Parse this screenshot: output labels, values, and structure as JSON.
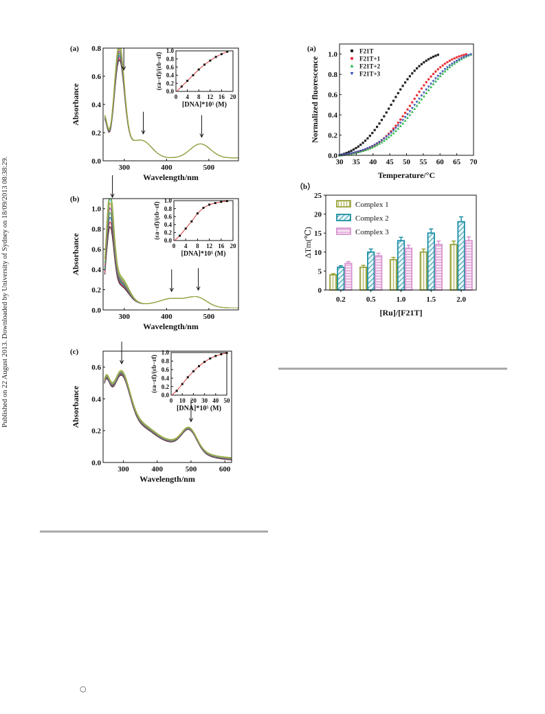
{
  "side_note": "Published on 22 August 2013. Downloaded by University of Sydney on 18/09/2013 08:38:29.",
  "footer_mark": "○",
  "colors": {
    "black": "#222222",
    "red": "#e8333a",
    "green": "#2db84b",
    "blue": "#3a55b0",
    "olive": "#9aa43c",
    "teal": "#1d8fa4",
    "pink": "#d994d0",
    "purple": "#8a3fa0",
    "orange": "#e08a28",
    "fit": "#d93b3b"
  },
  "fig_left": {
    "panels": [
      {
        "id": "a",
        "label": "(a)",
        "xlabel": "Wavelength/nm",
        "ylabel": "Absorbance",
        "xlim": [
          250,
          570
        ],
        "ylim": [
          0,
          0.8
        ],
        "xticks": [
          300,
          400,
          500
        ],
        "yticks": [
          0.0,
          0.2,
          0.4,
          0.6,
          0.8
        ],
        "tick_labels_y": [
          "0.0",
          "0.2",
          "0.4",
          "0.6",
          "0.8"
        ],
        "tick_labels_x": [
          "300",
          "400",
          "500"
        ],
        "peak_x": 288,
        "peak_min": 0.66,
        "peak_max": 0.78,
        "arrows_x": [
          299,
          345,
          483
        ],
        "inset": {
          "xlabel": "[DNA]*10⁵ (M)",
          "ylabel": "(εa−εf)/(εb−εf)",
          "xlim": [
            0,
            20
          ],
          "ylim": [
            0,
            1.0
          ],
          "xticks": [
            0,
            4,
            8,
            12,
            16,
            20
          ],
          "yticks": [
            0.0,
            0.2,
            0.4,
            0.6,
            0.8,
            1.0
          ],
          "tick_labels_x": [
            "0",
            "4",
            "8",
            "12",
            "16",
            "20"
          ],
          "tick_labels_y": [
            "0.0",
            "0.2",
            "0.4",
            "0.6",
            "0.8",
            "1.0"
          ],
          "points": [
            [
              2,
              0.12
            ],
            [
              4,
              0.26
            ],
            [
              6,
              0.4
            ],
            [
              8,
              0.54
            ],
            [
              10,
              0.66
            ],
            [
              12,
              0.76
            ],
            [
              14,
              0.85
            ],
            [
              16,
              0.92
            ],
            [
              18,
              0.98
            ]
          ]
        }
      },
      {
        "id": "b",
        "label": "(b)",
        "xlabel": "Wavelength/nm",
        "ylabel": "Absorbance",
        "xlim": [
          250,
          570
        ],
        "ylim": [
          0,
          1.1
        ],
        "xticks": [
          300,
          400,
          500
        ],
        "yticks": [
          0.0,
          0.2,
          0.4,
          0.6,
          0.8,
          1.0
        ],
        "tick_labels_y": [
          "0.0",
          "0.2",
          "0.4",
          "0.6",
          "0.8",
          "1.0"
        ],
        "tick_labels_x": [
          "300",
          "400",
          "500"
        ],
        "peak_x": 266,
        "peak_min": 0.7,
        "peak_max": 1.03,
        "arrows_x": [
          272,
          412,
          475
        ],
        "inset": {
          "xlabel": "[DNA]*10⁵ (M)",
          "ylabel": "(εa−εf)/(εb−εf)",
          "xlim": [
            0,
            20
          ],
          "ylim": [
            0,
            1.0
          ],
          "xticks": [
            0,
            4,
            8,
            12,
            16,
            20
          ],
          "yticks": [
            0.0,
            0.2,
            0.4,
            0.6,
            0.8,
            1.0
          ],
          "tick_labels_x": [
            "0",
            "4",
            "8",
            "12",
            "16",
            "20"
          ],
          "tick_labels_y": [
            "0.0",
            "0.2",
            "0.4",
            "0.6",
            "0.8",
            "1.0"
          ],
          "points": [
            [
              2,
              0.12
            ],
            [
              4,
              0.3
            ],
            [
              6,
              0.48
            ],
            [
              8,
              0.68
            ],
            [
              10,
              0.82
            ],
            [
              12,
              0.9
            ],
            [
              14,
              0.94
            ],
            [
              16,
              0.97
            ],
            [
              18,
              0.99
            ]
          ]
        }
      },
      {
        "id": "c",
        "label": "(c)",
        "xlabel": "Wavelength/nm",
        "ylabel": "Absorbance",
        "xlim": [
          240,
          620
        ],
        "ylim": [
          0,
          0.7
        ],
        "xticks": [
          300,
          400,
          500,
          600
        ],
        "yticks": [
          0.0,
          0.2,
          0.4,
          0.6
        ],
        "tick_labels_y": [
          "0.0",
          "0.2",
          "0.4",
          "0.6"
        ],
        "tick_labels_x": [
          "300",
          "400",
          "500",
          "600"
        ],
        "peak_x": 290,
        "peak_min": 0.6,
        "peak_max": 0.64,
        "arrows_x": [
          295,
          500
        ],
        "inset": {
          "xlabel": "[DNA]*10⁵ (M)",
          "ylabel": "(εa−εf)/(εb−εf)",
          "xlim": [
            0,
            50
          ],
          "ylim": [
            0,
            1.0
          ],
          "xticks": [
            0,
            10,
            20,
            30,
            40,
            50
          ],
          "yticks": [
            0.0,
            0.2,
            0.4,
            0.6,
            0.8,
            1.0
          ],
          "tick_labels_x": [
            "0",
            "10",
            "20",
            "30",
            "40",
            "50"
          ],
          "tick_labels_y": [
            "0.0",
            "0.2",
            "0.4",
            "0.6",
            "0.8",
            "1.0"
          ],
          "points": [
            [
              5,
              0.1
            ],
            [
              10,
              0.26
            ],
            [
              15,
              0.42
            ],
            [
              20,
              0.56
            ],
            [
              25,
              0.68
            ],
            [
              30,
              0.78
            ],
            [
              35,
              0.86
            ],
            [
              40,
              0.92
            ],
            [
              45,
              0.96
            ],
            [
              50,
              0.99
            ]
          ]
        }
      }
    ]
  },
  "chart_data": [
    {
      "type": "scatter",
      "label": "(a)",
      "xlabel": "Temperature/°C",
      "ylabel": "Normalized fluorescence",
      "xlim": [
        30,
        70
      ],
      "ylim": [
        0,
        1.1
      ],
      "xticks": [
        30,
        35,
        40,
        45,
        50,
        55,
        60,
        65,
        70
      ],
      "yticks": [
        0.0,
        0.2,
        0.4,
        0.6,
        0.8,
        1.0
      ],
      "tick_labels_x": [
        "30",
        "35",
        "40",
        "45",
        "50",
        "55",
        "60",
        "65",
        "70"
      ],
      "tick_labels_y": [
        "0.0",
        "0.2",
        "0.4",
        "0.6",
        "0.8",
        "1.0"
      ],
      "legend_placement": "top-left",
      "series": [
        {
          "name": "F21T",
          "marker": "square",
          "color": "#222222",
          "tm": 45.5,
          "width": 5.0,
          "xmax": 60
        },
        {
          "name": "F21T+1",
          "marker": "circle",
          "color": "#e8333a",
          "tm": 51.5,
          "width": 5.3,
          "xmax": 68
        },
        {
          "name": "F21T+2",
          "marker": "triangle-up",
          "color": "#2db84b",
          "tm": 54.0,
          "width": 6.2,
          "xmax": 69.5
        },
        {
          "name": "F21T+3",
          "marker": "triangle-down",
          "color": "#3a55b0",
          "tm": 53.0,
          "width": 6.2,
          "xmax": 69.5
        }
      ]
    },
    {
      "type": "bar",
      "label": "（b）",
      "xlabel": "[Ru]/[F21T]",
      "ylabel": "ΔTm(℃)",
      "categories": [
        "0.2",
        "0.5",
        "1.0",
        "1.5",
        "2.0"
      ],
      "ylim": [
        0,
        25
      ],
      "yticks": [
        0,
        5,
        10,
        15,
        20,
        25
      ],
      "tick_labels_y": [
        "0",
        "5",
        "10",
        "15",
        "20",
        "25"
      ],
      "legend_placement": "top-left",
      "series": [
        {
          "name": "Complex 1",
          "color": "#9aa43c",
          "values": [
            4,
            6,
            8,
            10,
            12
          ],
          "errors": [
            0.3,
            0.5,
            0.6,
            0.8,
            0.9
          ]
        },
        {
          "name": "Complex 2",
          "color": "#1d8fa4",
          "values": [
            6,
            10,
            13,
            15,
            18
          ],
          "errors": [
            0.4,
            0.8,
            0.9,
            1.1,
            1.3
          ]
        },
        {
          "name": "Complex 3",
          "color": "#d994d0",
          "values": [
            7,
            9,
            11,
            12,
            13
          ],
          "errors": [
            0.5,
            0.7,
            0.8,
            0.9,
            1.0
          ]
        }
      ]
    }
  ]
}
